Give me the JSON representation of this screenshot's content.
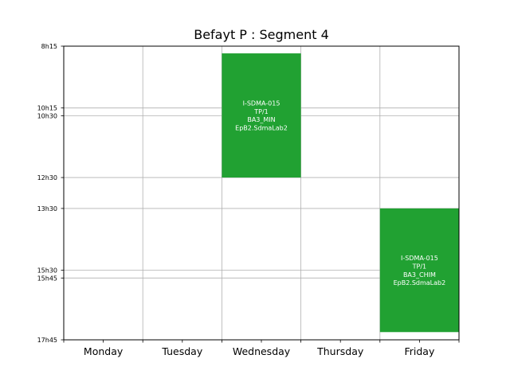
{
  "chart_data": {
    "type": "timetable",
    "title": "Befayt P : Segment 4",
    "days": [
      "Monday",
      "Tuesday",
      "Wednesday",
      "Thursday",
      "Friday"
    ],
    "y_range": [
      495,
      1065
    ],
    "y_ticks": [
      {
        "label": "8h15",
        "minutes": 495
      },
      {
        "label": "10h15",
        "minutes": 615
      },
      {
        "label": "10h30",
        "minutes": 630
      },
      {
        "label": "12h30",
        "minutes": 750
      },
      {
        "label": "13h30",
        "minutes": 810
      },
      {
        "label": "15h30",
        "minutes": 930
      },
      {
        "label": "15h45",
        "minutes": 945
      },
      {
        "label": "17h45",
        "minutes": 1065
      }
    ],
    "grid": true,
    "events": [
      {
        "day": 2,
        "start_minutes": 509,
        "end_minutes": 750,
        "color": "#21a132",
        "lines": [
          "I-SDMA-015",
          "TP/1",
          "BA3_MIN",
          "EpB2.SdmaLab2"
        ]
      },
      {
        "day": 4,
        "start_minutes": 810,
        "end_minutes": 1050,
        "color": "#21a132",
        "lines": [
          "I-SDMA-015",
          "TP/1",
          "BA3_CHIM",
          "EpB2.SdmaLab2"
        ]
      }
    ]
  }
}
